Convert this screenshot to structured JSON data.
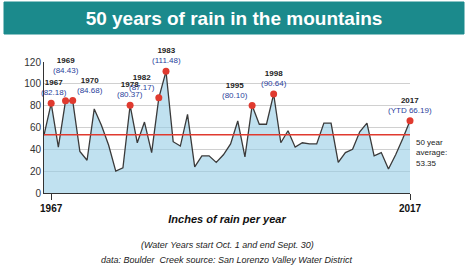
{
  "chart_data": {
    "type": "area",
    "title": "50 years of rain in the mountains",
    "x_label": "Inches of rain per year",
    "notes": [
      "(Water Years start Oct. 1 and end Sept. 30)",
      "data: Boulder  Creek source: San Lorenzo Valley Water District"
    ],
    "x": [
      1966,
      1967,
      1968,
      1969,
      1970,
      1971,
      1972,
      1973,
      1974,
      1975,
      1976,
      1977,
      1978,
      1979,
      1980,
      1981,
      1982,
      1983,
      1984,
      1985,
      1986,
      1987,
      1988,
      1989,
      1990,
      1991,
      1992,
      1993,
      1994,
      1995,
      1996,
      1997,
      1998,
      1999,
      2000,
      2001,
      2002,
      2003,
      2004,
      2005,
      2006,
      2007,
      2008,
      2009,
      2010,
      2011,
      2012,
      2013,
      2014,
      2015,
      2016,
      2017
    ],
    "values": [
      53,
      82.18,
      42,
      84.43,
      84.68,
      38,
      30,
      77,
      62,
      44,
      20,
      23,
      80.37,
      46,
      65,
      37,
      87.17,
      111.48,
      47,
      43,
      72,
      24,
      34,
      34,
      28,
      35,
      45,
      66,
      33,
      80.1,
      63,
      63,
      90.64,
      46,
      57,
      42,
      46,
      45,
      45,
      64,
      64,
      28,
      37,
      40,
      56,
      64,
      34,
      37,
      22,
      35,
      50,
      66.19
    ],
    "color": "#3a3a3a",
    "xlim": [
      1966,
      2017
    ],
    "xticks": [
      1967,
      2017
    ],
    "ylim": [
      0,
      120
    ],
    "yticks": [
      0,
      20,
      40,
      60,
      80,
      100,
      120
    ],
    "grid": true,
    "highlights": {
      "color": "#e03a2f",
      "points": [
        {
          "x": 1967,
          "label": "1967",
          "value_label": "(82.18)"
        },
        {
          "x": 1969,
          "label": "1969",
          "value_label": "(84.43)"
        },
        {
          "x": 1970,
          "label": "1970",
          "value_label": "(84.68)"
        },
        {
          "x": 1978,
          "label": "1978",
          "value_label": "(80.37)"
        },
        {
          "x": 1982,
          "label": "1982",
          "value_label": "(87.17)"
        },
        {
          "x": 1983,
          "label": "1983",
          "value_label": "(111.48)"
        },
        {
          "x": 1995,
          "label": "1995",
          "value_label": "(80.10)"
        },
        {
          "x": 1998,
          "label": "1998",
          "value_label": "(90.64)"
        },
        {
          "x": 2017,
          "label": "2017",
          "value_label": "(YTD 66.19)"
        }
      ]
    },
    "average": {
      "value": 53.35,
      "label": [
        "50 year",
        "average:",
        "53.35"
      ],
      "color": "#e03a2f"
    }
  }
}
